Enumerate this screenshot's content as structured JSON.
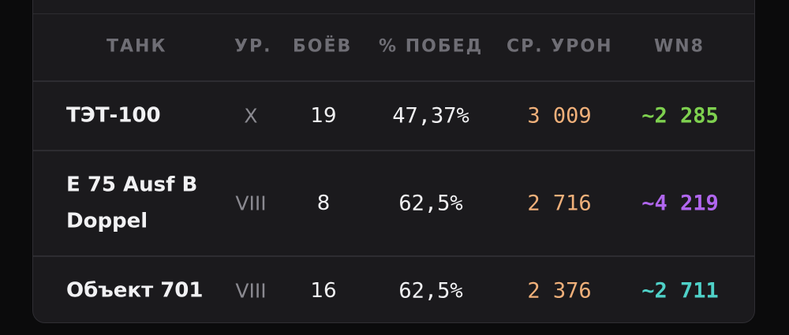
{
  "colors": {
    "damage": "#f0b07a",
    "wn8_green": "#7ed04f",
    "wn8_purple": "#b066ee",
    "wn8_teal": "#4fd1c8"
  },
  "table": {
    "headers": {
      "tank": "ТАНК",
      "tier": "УР.",
      "battles": "БОЁВ",
      "winrate": "% ПОБЕД",
      "avg_damage": "СР. УРОН",
      "wn8": "WN8"
    },
    "rows": [
      {
        "tank": "ТЭТ-100",
        "tier": "X",
        "battles": "19",
        "winrate": "47,37%",
        "avg_damage": "3 009",
        "wn8": "~2 285",
        "wn8_color": "#7ed04f"
      },
      {
        "tank_line1": "E 75 Ausf B",
        "tank_line2": "Doppel",
        "tier": "VIII",
        "battles": "8",
        "winrate": "62,5%",
        "avg_damage": "2 716",
        "wn8": "~4 219",
        "wn8_color": "#b066ee"
      },
      {
        "tank": "Объект 701",
        "tier": "VIII",
        "battles": "16",
        "winrate": "62,5%",
        "avg_damage": "2 376",
        "wn8": "~2 711",
        "wn8_color": "#4fd1c8"
      }
    ]
  }
}
